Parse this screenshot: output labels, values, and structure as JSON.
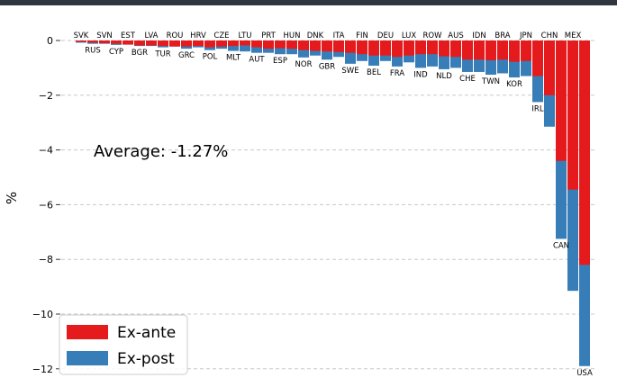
{
  "chart_data": {
    "type": "bar",
    "ylabel": "%",
    "ylim": [
      -12.2,
      0.3
    ],
    "yticks": [
      0,
      -2,
      -4,
      -6,
      -8,
      -10,
      -12
    ],
    "ytick_labels": [
      "0",
      "−2",
      "−4",
      "−6",
      "−8",
      "−10",
      "−12"
    ],
    "grid": "horizontal dashed",
    "annotation": "Average: -1.27%",
    "legend_position": "bottom-left",
    "categories": [
      "SVK",
      "RUS",
      "SVN",
      "CYP",
      "EST",
      "BGR",
      "LVA",
      "TUR",
      "ROU",
      "GRC",
      "HRV",
      "POL",
      "CZE",
      "MLT",
      "LTU",
      "AUT",
      "PRT",
      "ESP",
      "HUN",
      "NOR",
      "DNK",
      "GBR",
      "ITA",
      "SWE",
      "FIN",
      "BEL",
      "DEU",
      "FRA",
      "LUX",
      "IND",
      "ROW",
      "NLD",
      "AUS",
      "CHE",
      "IDN",
      "TWN",
      "BRA",
      "KOR",
      "JPN",
      "IRL",
      "CHN",
      "CAN",
      "MEX",
      "USA"
    ],
    "series": [
      {
        "name": "Ex-ante",
        "color": "#e41a1c",
        "values": [
          -0.05,
          -0.08,
          -0.1,
          -0.12,
          -0.15,
          -0.18,
          -0.18,
          -0.2,
          -0.22,
          -0.22,
          -0.2,
          -0.25,
          -0.22,
          -0.2,
          -0.18,
          -0.25,
          -0.3,
          -0.28,
          -0.3,
          -0.35,
          -0.38,
          -0.4,
          -0.42,
          -0.45,
          -0.5,
          -0.55,
          -0.55,
          -0.6,
          -0.55,
          -0.5,
          -0.5,
          -0.58,
          -0.6,
          -0.7,
          -0.7,
          -0.72,
          -0.7,
          -0.78,
          -0.75,
          -1.3,
          -2.0,
          -4.4,
          -5.45,
          -8.2
        ]
      },
      {
        "name": "Ex-post",
        "color": "#377eb8",
        "values": [
          -0.08,
          -0.12,
          -0.12,
          -0.16,
          -0.15,
          -0.2,
          -0.2,
          -0.25,
          -0.22,
          -0.3,
          -0.25,
          -0.35,
          -0.3,
          -0.38,
          -0.4,
          -0.45,
          -0.45,
          -0.5,
          -0.5,
          -0.62,
          -0.55,
          -0.7,
          -0.6,
          -0.85,
          -0.75,
          -0.92,
          -0.75,
          -0.95,
          -0.8,
          -1.0,
          -0.95,
          -1.05,
          -1.0,
          -1.15,
          -1.15,
          -1.25,
          -1.2,
          -1.35,
          -1.3,
          -2.25,
          -3.15,
          -7.25,
          -9.15,
          -11.9
        ]
      }
    ]
  }
}
